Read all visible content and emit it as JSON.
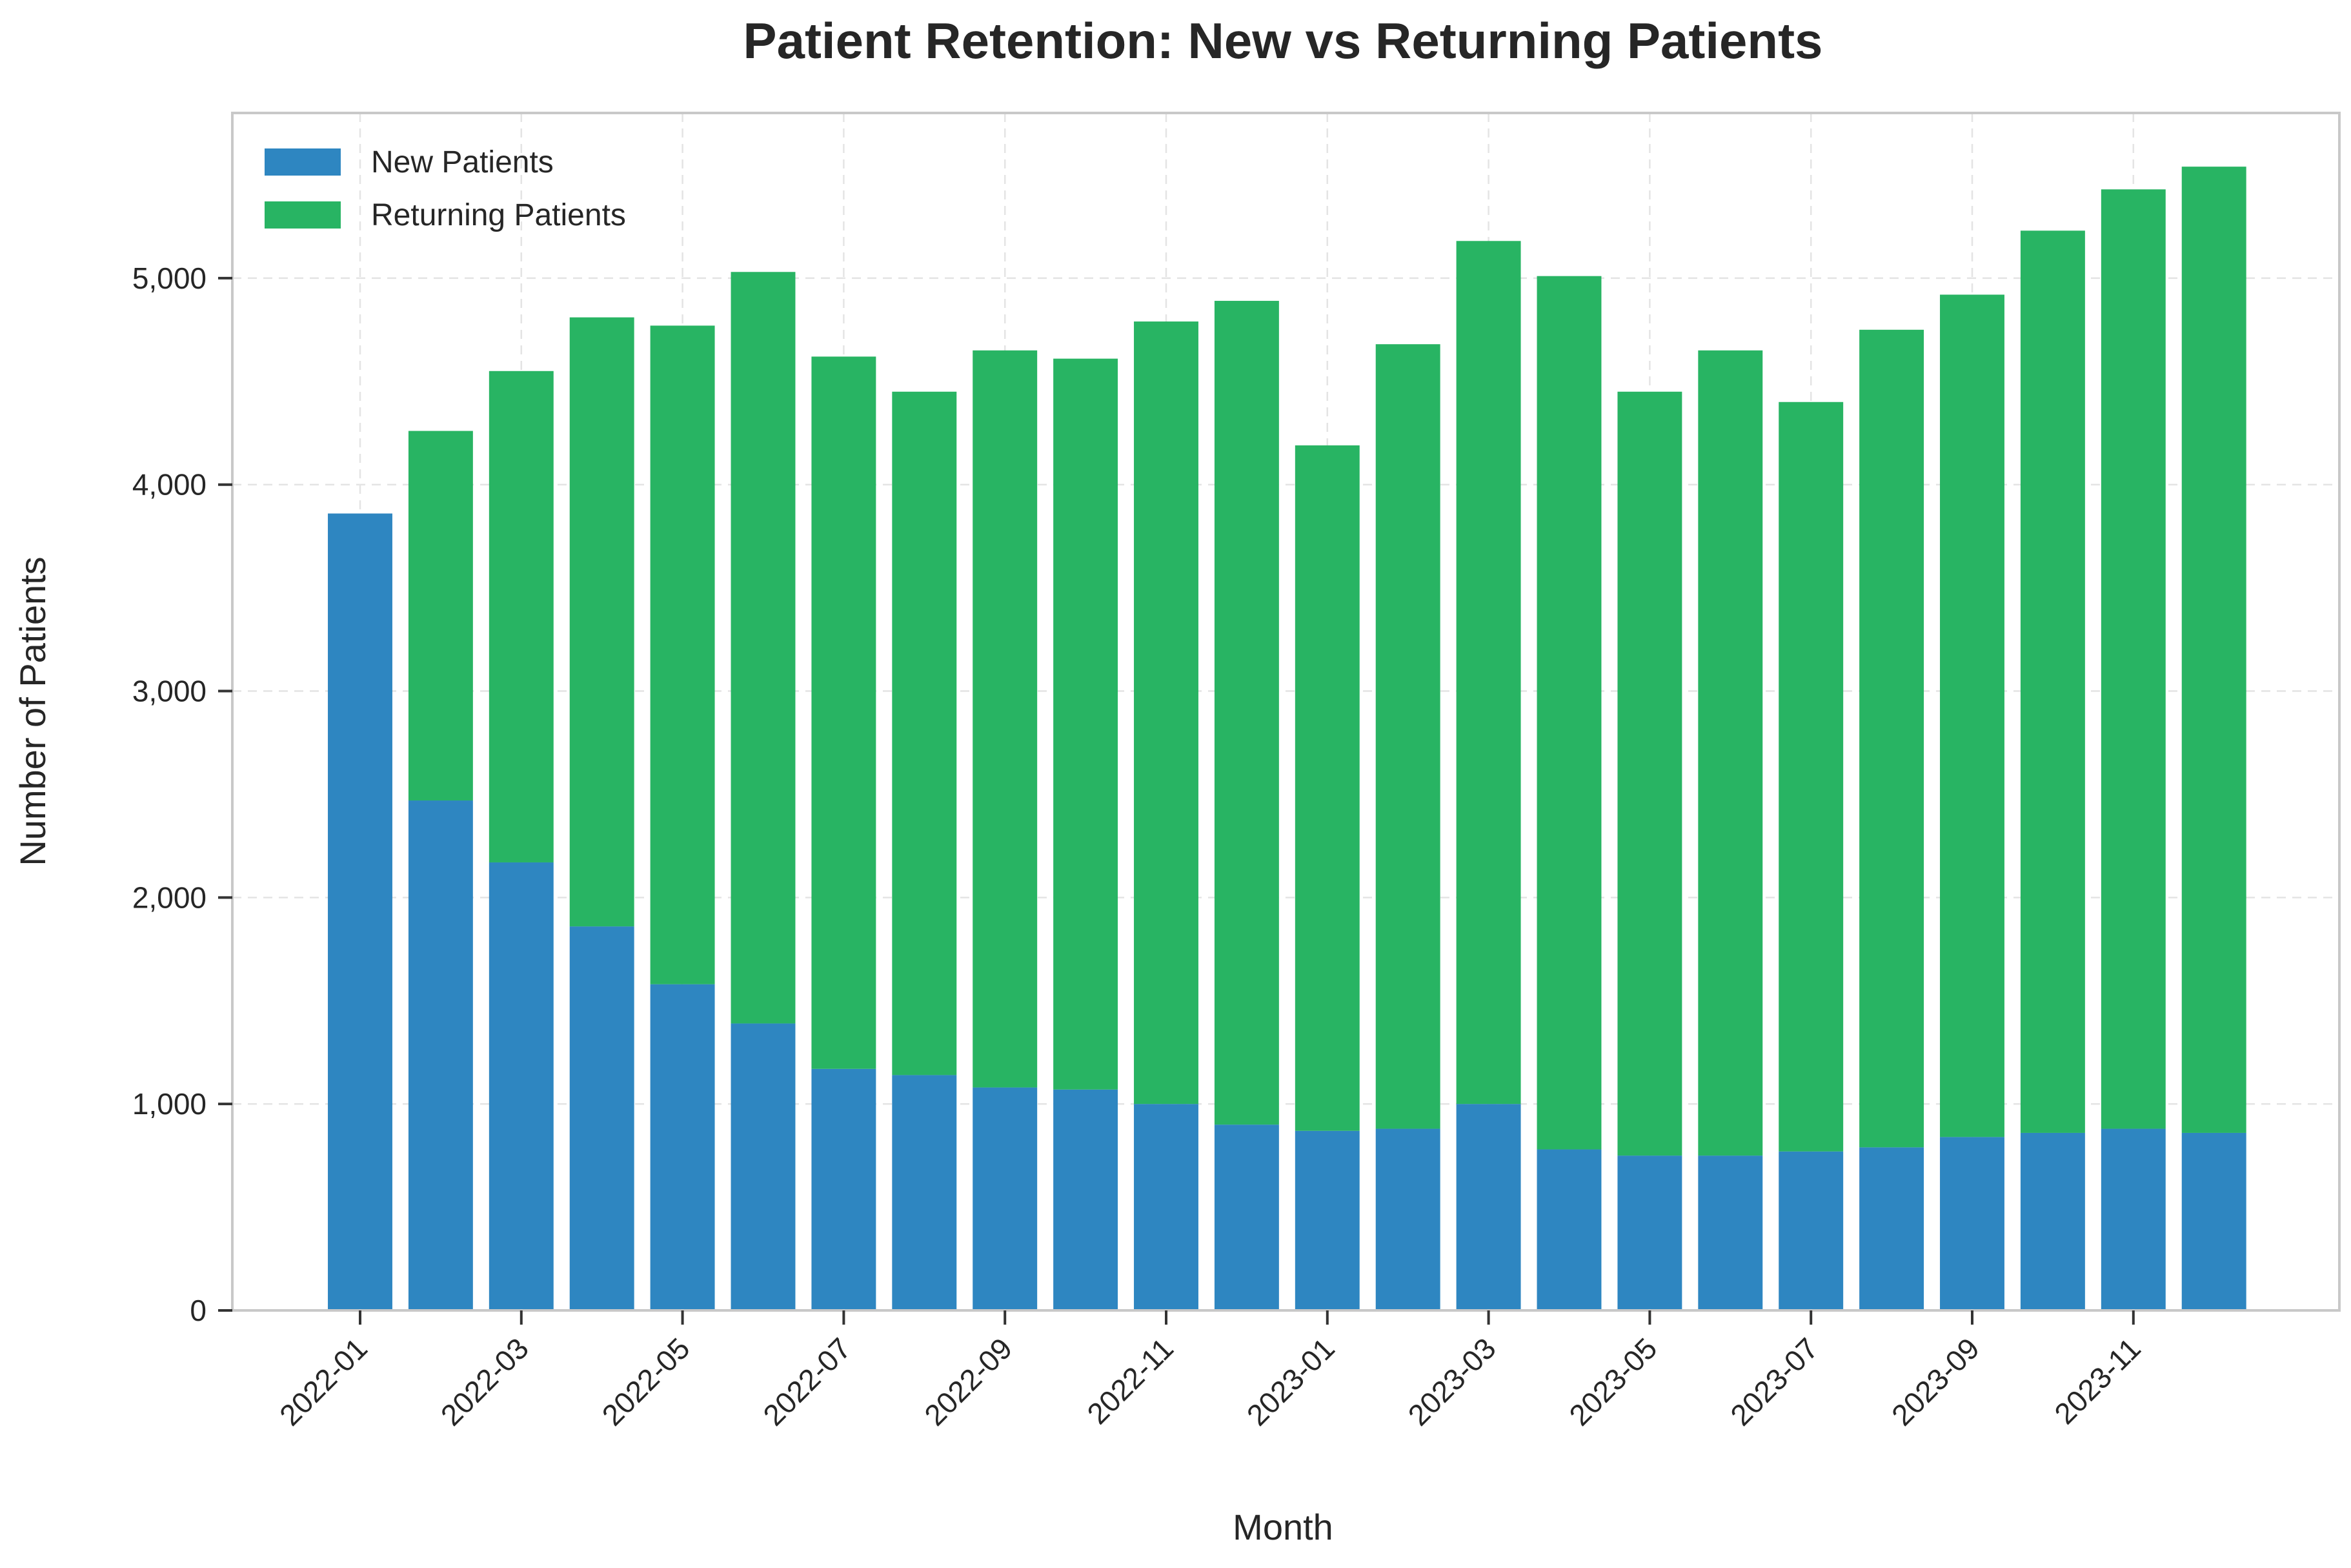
{
  "chart_data": {
    "type": "bar",
    "stacked": true,
    "title": "Patient Retention: New vs Returning Patients",
    "xlabel": "Month",
    "ylabel": "Number of Patients",
    "ylim": [
      0,
      5800
    ],
    "yticks": [
      0,
      1000,
      2000,
      3000,
      4000,
      5000
    ],
    "ytick_labels": [
      "0",
      "1,000",
      "2,000",
      "3,000",
      "4,000",
      "5,000"
    ],
    "grid": true,
    "legend": "top-left",
    "categories": [
      "2022-01",
      "2022-02",
      "2022-03",
      "2022-04",
      "2022-05",
      "2022-06",
      "2022-07",
      "2022-08",
      "2022-09",
      "2022-10",
      "2022-11",
      "2022-12",
      "2023-01",
      "2023-02",
      "2023-03",
      "2023-04",
      "2023-05",
      "2023-06",
      "2023-07",
      "2023-08",
      "2023-09",
      "2023-10",
      "2023-11",
      "2023-12"
    ],
    "xtick_labels": [
      "2022-01",
      "2022-03",
      "2022-05",
      "2022-07",
      "2022-09",
      "2022-11",
      "2023-01",
      "2023-03",
      "2023-05",
      "2023-07",
      "2023-09",
      "2023-11"
    ],
    "series": [
      {
        "name": "New Patients",
        "color": "#2e86c1",
        "values": [
          3860,
          2470,
          2170,
          1860,
          1580,
          1390,
          1170,
          1140,
          1080,
          1070,
          1000,
          900,
          870,
          880,
          1000,
          780,
          750,
          750,
          770,
          790,
          840,
          860,
          880,
          860
        ]
      },
      {
        "name": "Returning Patients",
        "color": "#28b463",
        "values": [
          0,
          1790,
          2380,
          2950,
          3190,
          3640,
          3450,
          3310,
          3570,
          3540,
          3790,
          3990,
          3320,
          3800,
          4180,
          4230,
          3700,
          3900,
          3630,
          3960,
          4080,
          4370,
          4550,
          4680
        ]
      }
    ]
  }
}
